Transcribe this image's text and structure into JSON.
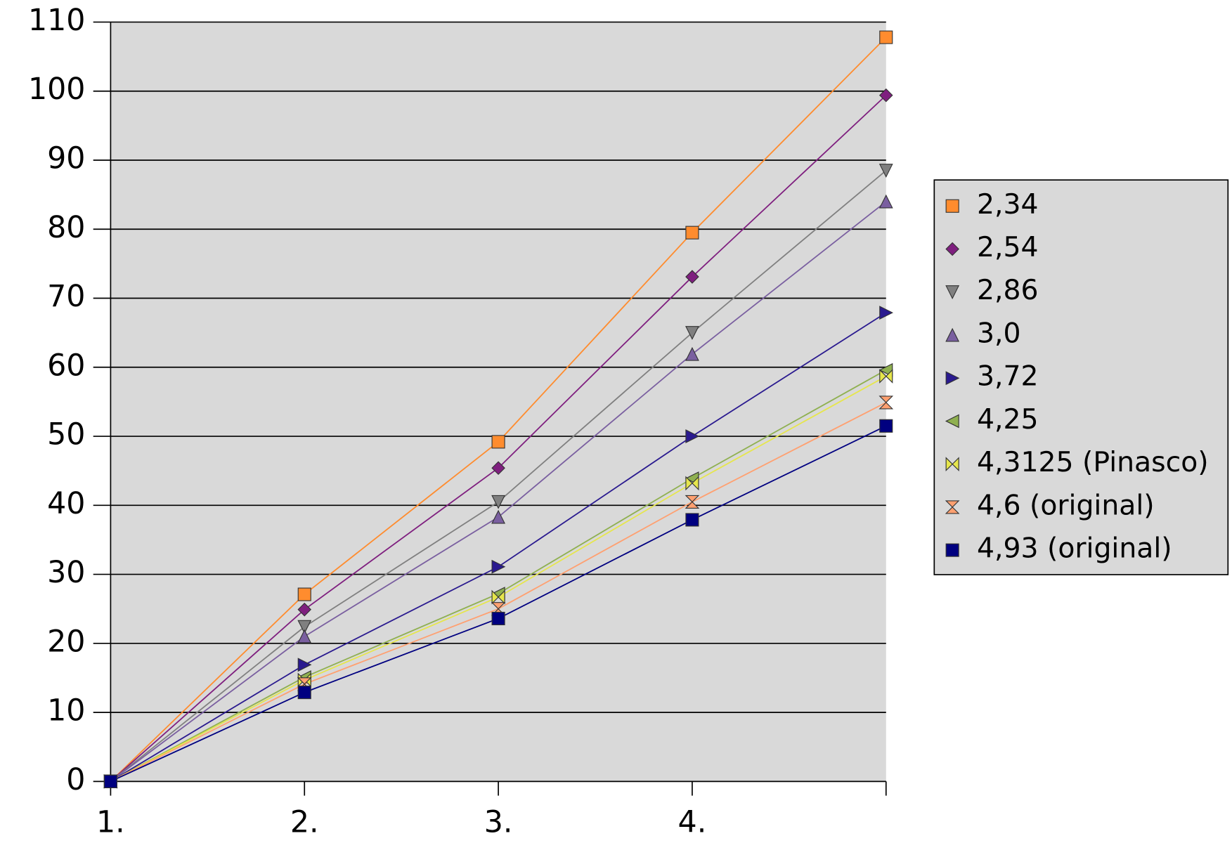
{
  "chart_data": {
    "type": "line",
    "categories": [
      "1.",
      "2.",
      "3.",
      "4.",
      null
    ],
    "ylim": [
      0,
      110
    ],
    "yticks": [
      0,
      10,
      20,
      30,
      40,
      50,
      60,
      70,
      80,
      90,
      100,
      110
    ],
    "grid": true,
    "legend": "right",
    "series": [
      {
        "name": "2,34",
        "color": "#ff8c2e",
        "marker": "square",
        "values": [
          0,
          27.1,
          49.2,
          79.5,
          107.8
        ]
      },
      {
        "name": "2,54",
        "color": "#7f1f7f",
        "marker": "diamond",
        "values": [
          0,
          24.9,
          45.4,
          73.1,
          99.4
        ]
      },
      {
        "name": "2,86",
        "color": "#808080",
        "marker": "triangle-down",
        "values": [
          0,
          22.4,
          40.5,
          65,
          88.5
        ]
      },
      {
        "name": "3,0",
        "color": "#7a5fa0",
        "marker": "triangle-up",
        "values": [
          0,
          21,
          38.3,
          61.9,
          84
        ]
      },
      {
        "name": "3,72",
        "color": "#2a1a8f",
        "marker": "triangle-right",
        "values": [
          0,
          16.9,
          31.1,
          50,
          67.9
        ]
      },
      {
        "name": "4,25",
        "color": "#8fb050",
        "marker": "triangle-left",
        "values": [
          0,
          15.1,
          27.2,
          43.9,
          59.6
        ]
      },
      {
        "name": "4,3125 (Pinasco)",
        "color": "#e6e64c",
        "marker": "bowtie",
        "values": [
          0,
          14.7,
          26.7,
          43.2,
          58.7
        ]
      },
      {
        "name": "4,6 (original)",
        "color": "#ffa070",
        "marker": "hourglass",
        "values": [
          0,
          14.1,
          25,
          40.5,
          54.9
        ]
      },
      {
        "name": "4,93 (original)",
        "color": "#000080",
        "marker": "square",
        "values": [
          0,
          12.9,
          23.6,
          37.9,
          51.5
        ]
      }
    ]
  }
}
